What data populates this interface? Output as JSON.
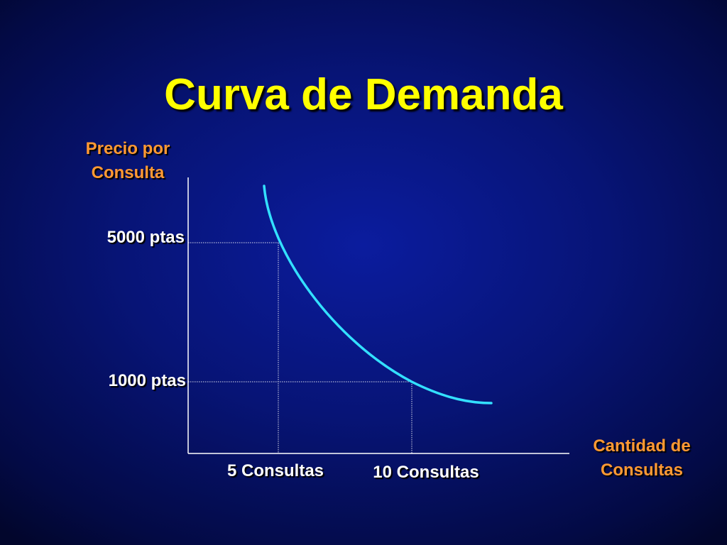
{
  "slide": {
    "title": "Curva de Demanda",
    "title_color": "#ffff00",
    "axis_title_color": "#ff9933",
    "text_color": "#ffffff",
    "curve_color": "#33e0ff"
  },
  "chart_data": {
    "type": "line",
    "title": "Curva de Demanda",
    "ylabel_lines": [
      "Precio por",
      "Consulta"
    ],
    "xlabel_lines": [
      "Cantidad de",
      "Consultas"
    ],
    "y_ticks": [
      {
        "value": 5000,
        "label": "5000 ptas"
      },
      {
        "value": 1000,
        "label": "1000 ptas"
      }
    ],
    "x_ticks": [
      {
        "value": 5,
        "label": "5 Consultas"
      },
      {
        "value": 10,
        "label": "10 Consultas"
      }
    ],
    "series": [
      {
        "points": [
          {
            "x": 4.5,
            "y": 5800
          },
          {
            "x": 5,
            "y": 5000
          },
          {
            "x": 6.5,
            "y": 3200
          },
          {
            "x": 8,
            "y": 2000
          },
          {
            "x": 10,
            "y": 1000
          },
          {
            "x": 13,
            "y": 400
          }
        ]
      }
    ],
    "reference_points": [
      {
        "x": 5,
        "y": 5000
      },
      {
        "x": 10,
        "y": 1000
      }
    ],
    "grid": false
  }
}
